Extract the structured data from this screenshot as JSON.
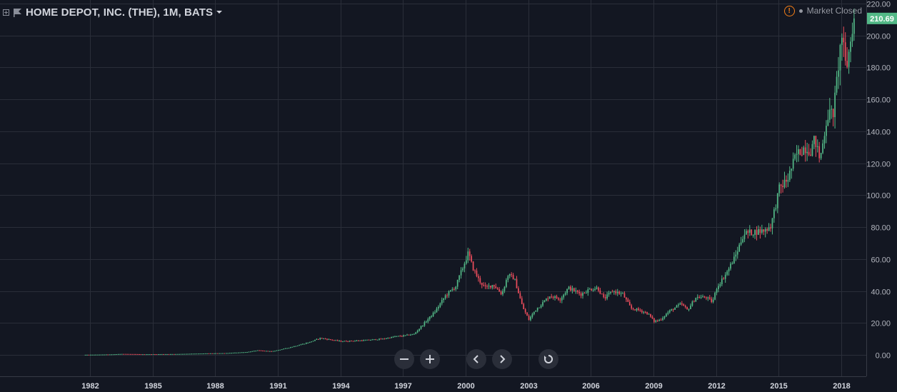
{
  "header": {
    "title": "HOME DEPOT, INC. (THE), 1M, BATS",
    "market_status": "Market Closed",
    "warning_symbol": "!"
  },
  "icons": {
    "expand": "plus-square-icon",
    "flag": "flag-icon",
    "dropdown": "caret-down-icon",
    "warning": "warning-icon",
    "status": "status-dot-icon"
  },
  "controls": {
    "zoom_out": "zoom-out-icon",
    "zoom_in": "zoom-in-icon",
    "scroll_left": "chevron-left-icon",
    "scroll_right": "chevron-right-icon",
    "reset": "reset-icon"
  },
  "colors": {
    "background": "#131722",
    "grid": "#2a2e39",
    "up": "#26a69a",
    "up_body": "#53b987",
    "down": "#ef5350",
    "down_body": "#eb4d5c",
    "axis_text": "#b2b5be",
    "price_label_bg": "#53b987",
    "warning": "#f57f17"
  },
  "chart_data": {
    "type": "candlestick",
    "title": "HOME DEPOT, INC. (THE), 1M, BATS",
    "interval": "1M",
    "x_range": [
      1981.75,
      2018.6
    ],
    "ylim": [
      -10,
      220
    ],
    "yticks": [
      0,
      20,
      40,
      60,
      80,
      100,
      120,
      140,
      160,
      180,
      200,
      220
    ],
    "ytick_labels": [
      "0.00",
      "20.00",
      "40.00",
      "60.00",
      "80.00",
      "100.00",
      "120.00",
      "140.00",
      "160.00",
      "180.00",
      "200.00",
      "220.00"
    ],
    "xticks": [
      1982,
      1985,
      1988,
      1991,
      1994,
      1997,
      2000,
      2003,
      2006,
      2009,
      2012,
      2015,
      2018
    ],
    "xtick_labels": [
      "1982",
      "1985",
      "1988",
      "1991",
      "1994",
      "1997",
      "2000",
      "2003",
      "2006",
      "2009",
      "2012",
      "2015",
      "2018"
    ],
    "last_price": 210.69,
    "last_price_label": "210.69",
    "grid": true,
    "close_anchors": [
      [
        1981.8,
        0.05
      ],
      [
        1983.0,
        0.3
      ],
      [
        1983.5,
        0.6
      ],
      [
        1984.5,
        0.4
      ],
      [
        1986.0,
        0.5
      ],
      [
        1987.5,
        0.9
      ],
      [
        1988.5,
        1.1
      ],
      [
        1989.5,
        1.8
      ],
      [
        1990.0,
        2.8
      ],
      [
        1990.7,
        2.2
      ],
      [
        1991.5,
        4.5
      ],
      [
        1992.5,
        8.0
      ],
      [
        1993.0,
        10.5
      ],
      [
        1993.5,
        9.5
      ],
      [
        1994.0,
        8.5
      ],
      [
        1995.0,
        9.0
      ],
      [
        1996.0,
        10.0
      ],
      [
        1996.6,
        11.5
      ],
      [
        1997.0,
        12.0
      ],
      [
        1997.5,
        13.0
      ],
      [
        1998.0,
        20.0
      ],
      [
        1998.5,
        27.0
      ],
      [
        1999.0,
        37.0
      ],
      [
        1999.5,
        43.0
      ],
      [
        1999.9,
        57.0
      ],
      [
        2000.1,
        64.0
      ],
      [
        2000.3,
        55.0
      ],
      [
        2000.6,
        47.0
      ],
      [
        2000.9,
        42.0
      ],
      [
        2001.3,
        44.0
      ],
      [
        2001.7,
        38.0
      ],
      [
        2002.0,
        50.0
      ],
      [
        2002.3,
        48.0
      ],
      [
        2002.7,
        30.0
      ],
      [
        2003.0,
        22.0
      ],
      [
        2003.3,
        28.0
      ],
      [
        2003.7,
        33.0
      ],
      [
        2004.0,
        37.0
      ],
      [
        2004.5,
        35.0
      ],
      [
        2004.9,
        42.0
      ],
      [
        2005.5,
        38.0
      ],
      [
        2005.9,
        41.0
      ],
      [
        2006.3,
        42.0
      ],
      [
        2006.6,
        35.0
      ],
      [
        2007.0,
        40.0
      ],
      [
        2007.5,
        38.0
      ],
      [
        2007.9,
        29.0
      ],
      [
        2008.3,
        28.0
      ],
      [
        2008.7,
        26.0
      ],
      [
        2009.0,
        21.0
      ],
      [
        2009.3,
        22.0
      ],
      [
        2009.7,
        27.0
      ],
      [
        2010.3,
        32.0
      ],
      [
        2010.6,
        28.0
      ],
      [
        2011.0,
        36.0
      ],
      [
        2011.5,
        36.0
      ],
      [
        2011.8,
        33.0
      ],
      [
        2012.0,
        42.0
      ],
      [
        2012.5,
        52.0
      ],
      [
        2012.9,
        62.0
      ],
      [
        2013.3,
        76.0
      ],
      [
        2013.8,
        77.0
      ],
      [
        2014.3,
        78.0
      ],
      [
        2014.6,
        81.0
      ],
      [
        2015.0,
        104.0
      ],
      [
        2015.4,
        110.0
      ],
      [
        2015.8,
        125.0
      ],
      [
        2016.2,
        130.0
      ],
      [
        2016.5,
        128.0
      ],
      [
        2016.7,
        135.0
      ],
      [
        2016.95,
        122.0
      ],
      [
        2017.3,
        150.0
      ],
      [
        2017.6,
        152.0
      ],
      [
        2017.9,
        190.0
      ],
      [
        2018.0,
        200.0
      ],
      [
        2018.2,
        178.0
      ],
      [
        2018.4,
        195.0
      ],
      [
        2018.55,
        210.69
      ]
    ]
  }
}
